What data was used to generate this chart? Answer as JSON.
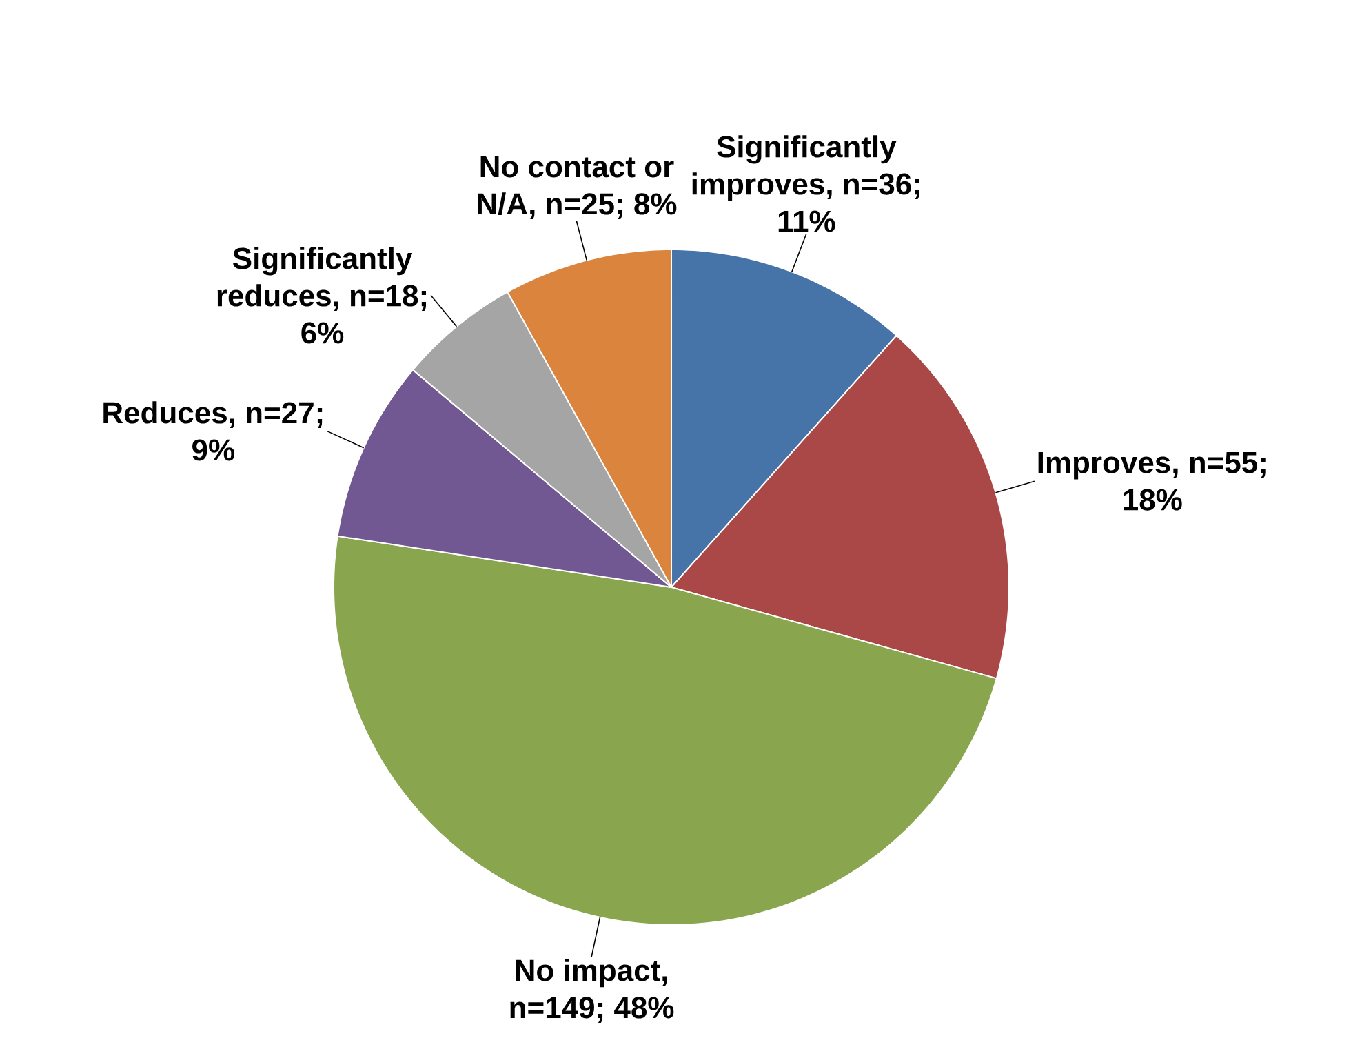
{
  "chart_data": {
    "type": "pie",
    "categories": [
      "Significantly improves, n=36; 11%",
      "Improves, n=55; 18%",
      "No impact, n=149; 48%",
      "Reduces, n=27; 9%",
      "Significantly reduces, n=18; 6%",
      "No contact or N/A, n=25; 8%"
    ],
    "values": [
      36,
      55,
      149,
      27,
      18,
      25
    ],
    "colors": [
      "#4674a8",
      "#a94846",
      "#89a64e",
      "#715893",
      "#a5a5a5",
      "#db843d"
    ]
  }
}
